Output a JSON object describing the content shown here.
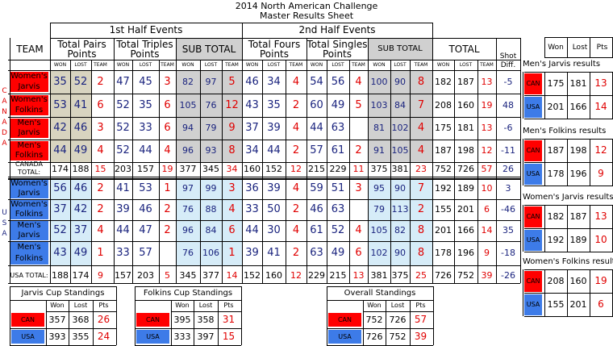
{
  "title": "2014 North American Challenge",
  "subtitle": "Master Results Sheet",
  "half1": "1st Half Events",
  "half2": "2nd Half Events",
  "team_header": "TEAM",
  "col_heads": {
    "pairs": [
      "Total Pairs",
      "Points"
    ],
    "triples": [
      "Total Triples",
      "Points"
    ],
    "subtotal": "SUB TOTAL",
    "fours": [
      "Total Fours",
      "Points"
    ],
    "singles": [
      "Total Singles",
      "Points"
    ],
    "total": "TOTAL",
    "shot": [
      "Shot",
      "Diff."
    ]
  },
  "small_heads": {
    "won": "WON",
    "lost": "LOST",
    "team": "TEAM"
  },
  "side": {
    "canada": "CANADA",
    "usa": "USA"
  },
  "canada_rows": [
    {
      "name": [
        "Women's",
        "Jarvis"
      ],
      "v": [
        "35",
        "52",
        "2",
        "47",
        "45",
        "3",
        "82",
        "97",
        "5",
        "46",
        "34",
        "4",
        "54",
        "56",
        "4",
        "100",
        "90",
        "8",
        "182",
        "187",
        "13",
        "-5"
      ]
    },
    {
      "name": [
        "Women's",
        "Folkins"
      ],
      "v": [
        "53",
        "41",
        "6",
        "52",
        "35",
        "6",
        "105",
        "76",
        "12",
        "43",
        "35",
        "2",
        "60",
        "49",
        "5",
        "103",
        "84",
        "7",
        "208",
        "160",
        "19",
        "48"
      ]
    },
    {
      "name": [
        "Men's",
        "Jarvis"
      ],
      "v": [
        "42",
        "46",
        "3",
        "52",
        "33",
        "6",
        "94",
        "79",
        "9",
        "37",
        "39",
        "4",
        "44",
        "63",
        "",
        "81",
        "102",
        "4",
        "175",
        "181",
        "13",
        "-6"
      ]
    },
    {
      "name": [
        "Men's",
        "Folkins"
      ],
      "v": [
        "44",
        "49",
        "4",
        "52",
        "44",
        "4",
        "96",
        "93",
        "8",
        "34",
        "44",
        "2",
        "57",
        "61",
        "2",
        "91",
        "105",
        "4",
        "187",
        "198",
        "12",
        "-11"
      ]
    }
  ],
  "canada_total": {
    "label": [
      "CANADA",
      "TOTAL:"
    ],
    "v": [
      "174",
      "188",
      "15",
      "203",
      "157",
      "19",
      "377",
      "345",
      "34",
      "160",
      "152",
      "12",
      "215",
      "229",
      "11",
      "375",
      "381",
      "23",
      "752",
      "726",
      "57",
      "26"
    ]
  },
  "usa_rows": [
    {
      "name": [
        "Women's",
        "Jarvis"
      ],
      "v": [
        "56",
        "46",
        "2",
        "41",
        "53",
        "1",
        "97",
        "99",
        "3",
        "36",
        "39",
        "4",
        "59",
        "51",
        "3",
        "95",
        "90",
        "7",
        "192",
        "189",
        "10",
        "3"
      ]
    },
    {
      "name": [
        "Women's",
        "Folkins"
      ],
      "v": [
        "37",
        "42",
        "2",
        "39",
        "46",
        "2",
        "76",
        "88",
        "4",
        "33",
        "50",
        "2",
        "46",
        "63",
        "",
        "79",
        "113",
        "2",
        "155",
        "201",
        "6",
        "-46"
      ]
    },
    {
      "name": [
        "Men's",
        "Jarvis"
      ],
      "v": [
        "52",
        "37",
        "4",
        "44",
        "47",
        "2",
        "96",
        "84",
        "6",
        "44",
        "30",
        "4",
        "61",
        "52",
        "4",
        "105",
        "82",
        "8",
        "201",
        "166",
        "14",
        "35"
      ]
    },
    {
      "name": [
        "Men's",
        "Folkins"
      ],
      "v": [
        "43",
        "49",
        "1",
        "33",
        "57",
        "",
        "76",
        "106",
        "1",
        "39",
        "41",
        "2",
        "63",
        "49",
        "6",
        "102",
        "90",
        "8",
        "178",
        "196",
        "9",
        "-18"
      ]
    }
  ],
  "usa_total": {
    "label": "USA TOTAL:",
    "v": [
      "188",
      "174",
      "9",
      "157",
      "203",
      "5",
      "345",
      "377",
      "14",
      "152",
      "160",
      "12",
      "229",
      "215",
      "13",
      "381",
      "375",
      "25",
      "726",
      "752",
      "39",
      "-26"
    ]
  },
  "right_header": [
    "Won",
    "Lost",
    "Pts"
  ],
  "right_sections": [
    {
      "title": "Men's Jarvis results",
      "rows": [
        [
          "CAN",
          "175",
          "181",
          "13"
        ],
        [
          "USA",
          "201",
          "166",
          "14"
        ]
      ]
    },
    {
      "title": "Men's Folkins results",
      "rows": [
        [
          "CAN",
          "187",
          "198",
          "12"
        ],
        [
          "USA",
          "178",
          "196",
          "9"
        ]
      ]
    },
    {
      "title": "Women's Jarvis results",
      "rows": [
        [
          "CAN",
          "182",
          "187",
          "13"
        ],
        [
          "USA",
          "192",
          "189",
          "10"
        ]
      ]
    },
    {
      "title": "Women's Folkins results",
      "rows": [
        [
          "CAN",
          "208",
          "160",
          "19"
        ],
        [
          "USA",
          "155",
          "201",
          "6"
        ]
      ]
    }
  ],
  "standings": [
    {
      "title": "Jarvis Cup Standings",
      "head": [
        "Won",
        "Lost",
        "Pts"
      ],
      "rows": [
        [
          "CAN",
          "357",
          "368",
          "26"
        ],
        [
          "USA",
          "393",
          "355",
          "24"
        ]
      ]
    },
    {
      "title": "Folkins Cup Standings",
      "head": [
        "Won",
        "Lost",
        "Pts"
      ],
      "rows": [
        [
          "CAN",
          "395",
          "358",
          "31"
        ],
        [
          "USA",
          "333",
          "397",
          "15"
        ]
      ]
    },
    {
      "title": "Overall Standings",
      "head": [
        "Won",
        "Lost",
        "Pts"
      ],
      "rows": [
        [
          "CAN",
          "752",
          "726",
          "57"
        ],
        [
          "USA",
          "726",
          "752",
          "39"
        ]
      ]
    }
  ],
  "colors": {
    "can": "#ff0000",
    "usa": "#3d7be8",
    "tan": "#d8d4c0",
    "grey": "#d0d0d0",
    "lightblue": "#d6ecf8"
  }
}
